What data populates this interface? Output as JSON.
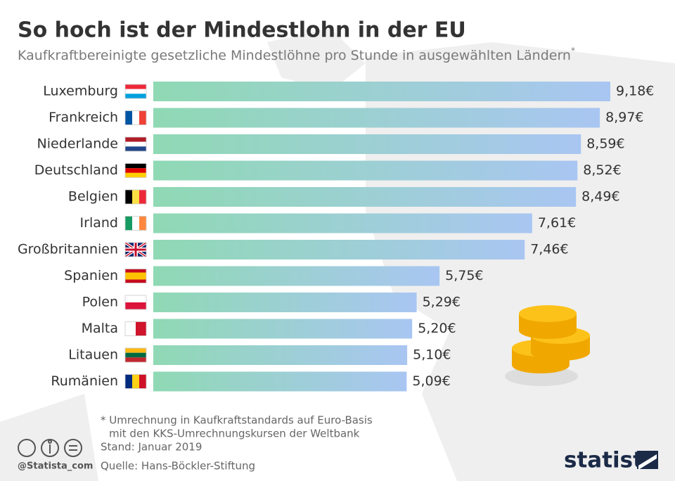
{
  "chart_data": {
    "type": "bar",
    "orientation": "horizontal",
    "title": "So hoch ist der Mindestlohn in der EU",
    "subtitle": "Kaufkraftbereinigte gesetzliche Mindestlöhne pro Stunde in ausgewählten Ländern",
    "subtitle_marker": "*",
    "categories": [
      "Luxemburg",
      "Frankreich",
      "Niederlande",
      "Deutschland",
      "Belgien",
      "Irland",
      "Großbritannien",
      "Spanien",
      "Polen",
      "Malta",
      "Litauen",
      "Rumänien"
    ],
    "values": [
      9.18,
      8.97,
      8.59,
      8.52,
      8.49,
      7.61,
      7.46,
      5.75,
      5.29,
      5.2,
      5.1,
      5.09
    ],
    "value_labels": [
      "9,18€",
      "8,97€",
      "8,59€",
      "8,52€",
      "8,49€",
      "7,61€",
      "7,46€",
      "5,75€",
      "5,29€",
      "5,20€",
      "5,10€",
      "5,09€"
    ],
    "colors": [
      "#8fd9b4",
      "#a9c6f2"
    ],
    "footnote": [
      "* Umrechnung in Kaufkraftstandards auf Euro-Basis",
      "mit den KKS-Umrechnungskursen der Weltbank"
    ],
    "date_note": "Stand: Januar 2019",
    "source": "Quelle: Hans-Böckler-Stiftung",
    "handle": "@Statista_com",
    "brand": "statista"
  }
}
